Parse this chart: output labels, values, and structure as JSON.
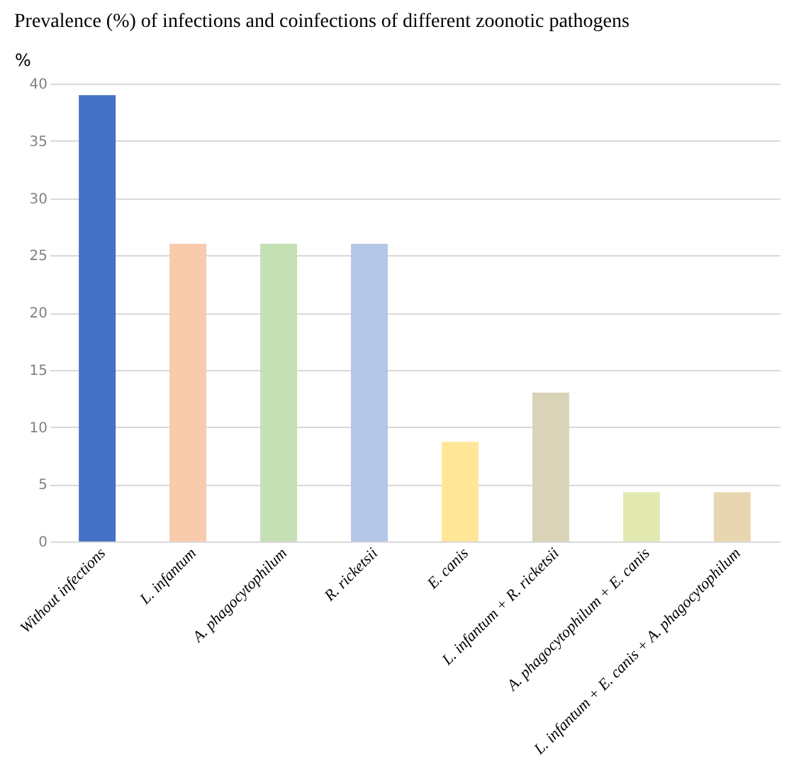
{
  "chart_data": {
    "type": "bar",
    "title": "Prevalence (%)  of infections and coinfections of different zoonotic pathogens",
    "ylabel": "%",
    "categories": [
      "Without infections",
      "L. infantum",
      "A. phagocytophilum",
      "R. ricketsii",
      "E. canis",
      "L. infantum + R. ricketsii",
      "A. phagocytophilum + E. canis",
      "L. infantum + E. canis + A. phagocytophilum"
    ],
    "values": [
      39,
      26,
      26,
      26,
      8.7,
      13,
      4.3,
      4.3
    ],
    "colors": [
      "#4472c4",
      "#f8cbad",
      "#c5e0b4",
      "#b4c7e7",
      "#ffe699",
      "#d9d3b8",
      "#e2e9b0",
      "#e8d6b0"
    ],
    "ylim": [
      0,
      40
    ],
    "yticks": [
      0,
      5,
      10,
      15,
      20,
      25,
      30,
      35,
      40
    ],
    "grid": "y"
  }
}
